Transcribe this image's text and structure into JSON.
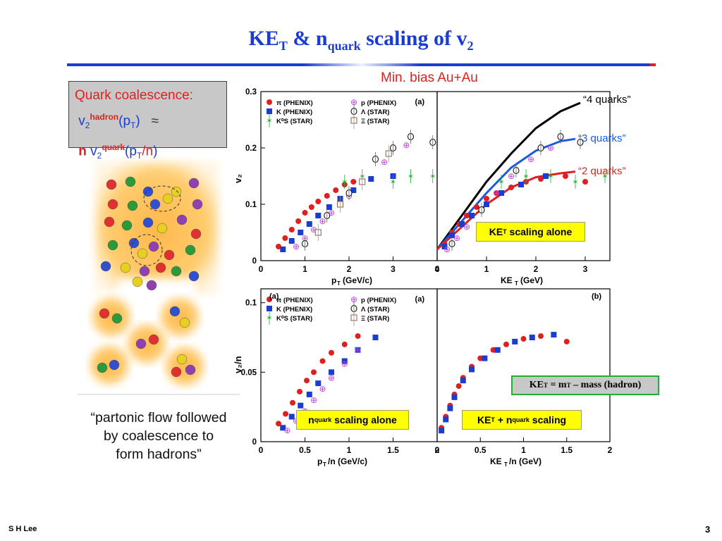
{
  "title": {
    "main": "KE",
    "sub1": "T",
    "amp": " & n",
    "sub2": "quark",
    "rest": " scaling of v",
    "sub3": "2"
  },
  "subtitle": "Min. bias Au+Au",
  "quark_box": {
    "line1": "Quark coalescence:",
    "v": "v",
    "two": "2",
    "hadron": "hadron",
    "pt": "(p",
    "T": "T",
    "close": ")",
    "approx": "≈",
    "n": "n",
    "quark": "quark",
    "pt_n": "(p",
    "slash_n": "/n",
    "close2": ")"
  },
  "caption": [
    "“partonic flow followed",
    "by coalescence to",
    "form hadrons”"
  ],
  "footer": {
    "author": "S H Lee",
    "page": "3"
  },
  "colors": {
    "pi": "#e02020",
    "K": "#1a3ccf",
    "K0s": "#22b030",
    "p": "#c040e0",
    "lambda": "#000000",
    "xi": "#8a6040",
    "four_q": "#000000",
    "three_q": "#1a5ae0",
    "two_q": "#e02020"
  },
  "legend_entries": [
    "π (PHENIX)",
    "K (PHENIX)",
    "K⁰S (STAR)",
    "p (PHENIX)",
    "Λ (STAR)",
    "Ξ (STAR)"
  ],
  "chart_data": [
    {
      "type": "scatter",
      "panel": "(a)",
      "xlabel": "pT (GeV/c)",
      "ylabel": "v2",
      "xlim": [
        0,
        4
      ],
      "ylim": [
        0,
        0.3
      ],
      "xticks": [
        "0",
        "1",
        "2",
        "3",
        "4"
      ],
      "yticks": [
        "0",
        "0.1",
        "0.2",
        "0.3"
      ],
      "series": [
        {
          "name": "π (PHENIX)",
          "x": [
            0.4,
            0.55,
            0.7,
            0.85,
            1.0,
            1.15,
            1.3,
            1.5,
            1.7,
            1.9,
            2.1
          ],
          "y": [
            0.025,
            0.04,
            0.055,
            0.07,
            0.085,
            0.095,
            0.105,
            0.115,
            0.125,
            0.135,
            0.14
          ]
        },
        {
          "name": "K (PHENIX)",
          "x": [
            0.5,
            0.7,
            0.9,
            1.1,
            1.3,
            1.55,
            1.8,
            2.1,
            2.5,
            3.0
          ],
          "y": [
            0.02,
            0.035,
            0.05,
            0.065,
            0.08,
            0.095,
            0.11,
            0.125,
            0.145,
            0.15
          ]
        },
        {
          "name": "K⁰S (STAR)",
          "x": [
            1.9,
            2.3,
            3.0,
            3.4,
            3.9
          ],
          "y": [
            0.14,
            0.15,
            0.14,
            0.15,
            0.15
          ]
        },
        {
          "name": "p (PHENIX)",
          "x": [
            0.8,
            1.0,
            1.2,
            1.4,
            1.6,
            1.8,
            2.0,
            2.3,
            2.8,
            3.3
          ],
          "y": [
            0.025,
            0.04,
            0.055,
            0.07,
            0.085,
            0.1,
            0.115,
            0.14,
            0.175,
            0.205
          ]
        },
        {
          "name": "Λ (STAR)",
          "x": [
            1.0,
            1.5,
            2.0,
            2.6,
            3.0,
            3.4,
            3.9
          ],
          "y": [
            0.03,
            0.08,
            0.12,
            0.18,
            0.2,
            0.22,
            0.21
          ]
        },
        {
          "name": "Ξ (STAR)",
          "x": [
            1.3,
            1.8,
            2.3,
            2.9
          ],
          "y": [
            0.05,
            0.1,
            0.14,
            0.19
          ]
        }
      ]
    },
    {
      "type": "line",
      "xlabel": "KET (GeV)",
      "xlim": [
        0,
        3.5
      ],
      "ylim": [
        0,
        0.3
      ],
      "xticks": [
        "0",
        "1",
        "2",
        "3"
      ],
      "annotation": "KET scaling alone",
      "series": [
        {
          "name": "“4 quarks”",
          "x": [
            0,
            0.5,
            1.0,
            1.5,
            2.0,
            2.5,
            2.9
          ],
          "y": [
            0.02,
            0.08,
            0.14,
            0.19,
            0.235,
            0.265,
            0.28
          ]
        },
        {
          "name": "“3 quarks”",
          "x": [
            0,
            0.5,
            1.0,
            1.5,
            2.0,
            2.5,
            2.8
          ],
          "y": [
            0.02,
            0.07,
            0.12,
            0.165,
            0.195,
            0.212,
            0.216
          ]
        },
        {
          "name": "“2 quarks”",
          "x": [
            0,
            0.5,
            1.0,
            1.5,
            2.0,
            2.5,
            2.8
          ],
          "y": [
            0.02,
            0.06,
            0.1,
            0.13,
            0.148,
            0.155,
            0.158
          ]
        }
      ]
    },
    {
      "type": "scatter",
      "panel": "(a)",
      "xlabel": "pT/n (GeV/c)",
      "ylabel": "v2/n",
      "xlim": [
        0,
        2
      ],
      "ylim": [
        0,
        0.11
      ],
      "xticks": [
        "0",
        "0.5",
        "1",
        "1.5",
        "2"
      ],
      "yticks": [
        "0",
        "0.05",
        "0.1"
      ],
      "annotation": "nquark scaling alone",
      "series": [
        {
          "name": "π (PHENIX)",
          "x": [
            0.2,
            0.28,
            0.36,
            0.44,
            0.52,
            0.6,
            0.7,
            0.8,
            0.95,
            1.1
          ],
          "y": [
            0.013,
            0.02,
            0.028,
            0.036,
            0.044,
            0.05,
            0.058,
            0.064,
            0.07,
            0.076
          ]
        },
        {
          "name": "K (PHENIX)",
          "x": [
            0.25,
            0.35,
            0.45,
            0.55,
            0.65,
            0.8,
            0.95,
            1.1,
            1.3
          ],
          "y": [
            0.01,
            0.018,
            0.026,
            0.034,
            0.042,
            0.05,
            0.058,
            0.066,
            0.075
          ]
        },
        {
          "name": "p (PHENIX)",
          "x": [
            0.3,
            0.4,
            0.5,
            0.6,
            0.7,
            0.8,
            0.95,
            1.1
          ],
          "y": [
            0.008,
            0.015,
            0.022,
            0.03,
            0.038,
            0.046,
            0.056,
            0.066
          ]
        }
      ]
    },
    {
      "type": "scatter",
      "panel": "(b)",
      "xlabel": "KET/n (GeV)",
      "xlim": [
        0,
        2
      ],
      "ylim": [
        0,
        0.11
      ],
      "xticks": [
        "0",
        "0.5",
        "1",
        "1.5",
        "2"
      ],
      "annotation": "KET + nquark scaling",
      "note": "KET = mT – mass (hadron)",
      "series": [
        {
          "name": "π (PHENIX)",
          "x": [
            0.05,
            0.1,
            0.15,
            0.2,
            0.25,
            0.3,
            0.4,
            0.5,
            0.65,
            0.8,
            1.0,
            1.2,
            1.5
          ],
          "y": [
            0.01,
            0.018,
            0.026,
            0.034,
            0.04,
            0.046,
            0.054,
            0.06,
            0.066,
            0.07,
            0.074,
            0.076,
            0.072
          ]
        },
        {
          "name": "K (PHENIX)",
          "x": [
            0.05,
            0.1,
            0.15,
            0.2,
            0.3,
            0.4,
            0.55,
            0.7,
            0.9,
            1.1,
            1.35
          ],
          "y": [
            0.008,
            0.016,
            0.024,
            0.032,
            0.044,
            0.052,
            0.06,
            0.066,
            0.072,
            0.075,
            0.077
          ]
        }
      ]
    }
  ]
}
